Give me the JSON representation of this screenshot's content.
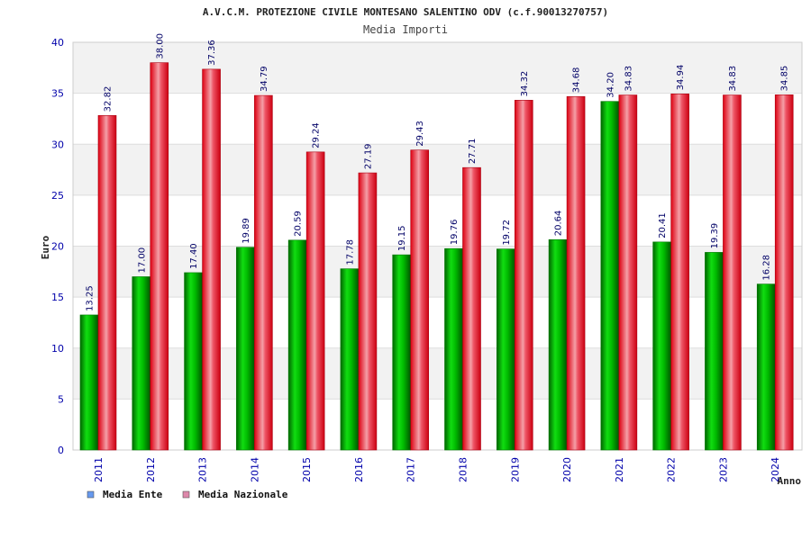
{
  "chart_data": {
    "type": "bar",
    "title": "A.V.C.M. PROTEZIONE CIVILE MONTESANO SALENTINO ODV (c.f.90013270757)",
    "subtitle": "Media Importi",
    "xlabel": "Anno",
    "ylabel": "Euro",
    "ylim": [
      0,
      40
    ],
    "yticks": [
      0,
      5,
      10,
      15,
      20,
      25,
      30,
      35,
      40
    ],
    "grid": true,
    "legend_position": "bottom-left",
    "categories": [
      "2011",
      "2012",
      "2013",
      "2014",
      "2015",
      "2016",
      "2017",
      "2018",
      "2019",
      "2020",
      "2021",
      "2022",
      "2023",
      "2024"
    ],
    "series": [
      {
        "name": "Media Ente",
        "color": "#00bb00",
        "legend_color": "#6699ee",
        "values": [
          13.25,
          17.0,
          17.4,
          19.89,
          20.59,
          17.78,
          19.15,
          19.76,
          19.72,
          20.64,
          34.2,
          20.41,
          19.39,
          16.28
        ],
        "labels": [
          "13.25",
          "17.00",
          "17.40",
          "19.89",
          "20.59",
          "17.78",
          "19.15",
          "19.76",
          "19.72",
          "20.64",
          "34.20",
          "20.41",
          "19.39",
          "16.28"
        ]
      },
      {
        "name": "Media Nazionale",
        "color": "#ee1122",
        "legend_color": "#dd88aa",
        "values": [
          32.82,
          38.0,
          37.36,
          34.79,
          29.24,
          27.19,
          29.43,
          27.71,
          34.32,
          34.68,
          34.83,
          34.94,
          34.83,
          34.85
        ],
        "labels": [
          "32.82",
          "38.00",
          "37.36",
          "34.79",
          "29.24",
          "27.19",
          "29.43",
          "27.71",
          "34.32",
          "34.68",
          "34.83",
          "34.94",
          "34.83",
          "34.85"
        ]
      }
    ]
  }
}
